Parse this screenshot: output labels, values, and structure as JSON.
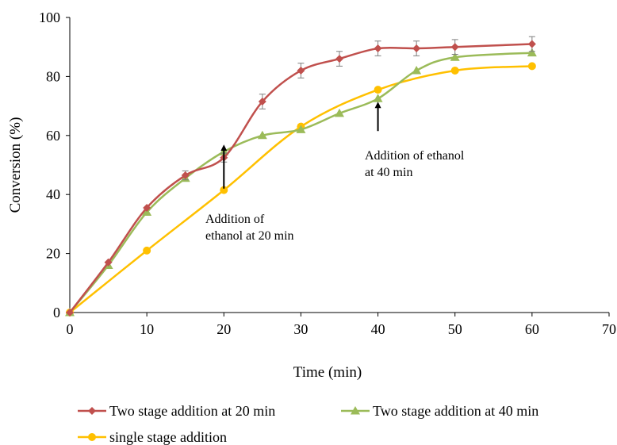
{
  "chart_data": {
    "type": "line",
    "xlabel": "Time (min)",
    "ylabel": "Conversion (%)",
    "xlim": [
      0,
      70
    ],
    "ylim": [
      0,
      100
    ],
    "xticks": [
      0,
      10,
      20,
      30,
      40,
      50,
      60,
      70
    ],
    "yticks": [
      0,
      20,
      40,
      60,
      80,
      100
    ],
    "grid": false,
    "legend_position": "bottom",
    "series": [
      {
        "name": "Two stage addition at 20 min",
        "color": "#c0504d",
        "marker": "diamond",
        "x": [
          0,
          5,
          10,
          15,
          20,
          25,
          30,
          35,
          40,
          45,
          50,
          60
        ],
        "y": [
          0,
          17,
          35.5,
          46.5,
          52.5,
          71.5,
          82,
          86,
          89.5,
          89.5,
          90,
          91
        ],
        "error": [
          0,
          0,
          0,
          1.5,
          1.5,
          2.5,
          2.5,
          2.5,
          2.5,
          2.5,
          2.5,
          2.5
        ]
      },
      {
        "name": "Two stage addition at 40 min",
        "color": "#9bbb59",
        "marker": "triangle",
        "x": [
          0,
          5,
          10,
          15,
          20,
          25,
          30,
          35,
          40,
          45,
          50,
          60
        ],
        "y": [
          0,
          16,
          34,
          45.5,
          54.5,
          60,
          62,
          67.5,
          72.5,
          82,
          86.5,
          88
        ]
      },
      {
        "name": "single stage addition",
        "color": "#ffc000",
        "marker": "circle",
        "x": [
          0,
          10,
          20,
          30,
          40,
          50,
          60
        ],
        "y": [
          0,
          21,
          41.5,
          63,
          75.5,
          82,
          83.5
        ]
      }
    ],
    "annotations": [
      {
        "lines": [
          "Addition of",
          "ethanol at 20 min"
        ],
        "arrow_x": 20,
        "arrow_from_y": 42,
        "arrow_to_y": 58
      },
      {
        "lines": [
          "Addition of ethanol",
          "at 40 min"
        ],
        "arrow_x": 40,
        "arrow_from_y": 61.5,
        "arrow_to_y": 72.5
      }
    ]
  }
}
